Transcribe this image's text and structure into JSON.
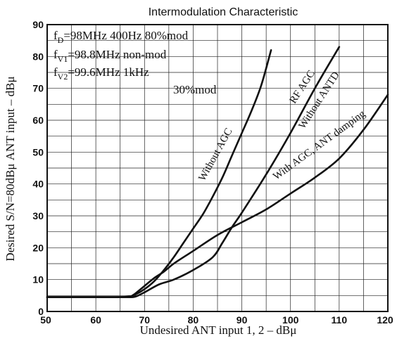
{
  "chart_data": {
    "type": "line",
    "title": "Intermodulation Characteristic",
    "xlabel": "Undesired ANT input 1, 2   –   dBμ",
    "ylabel": "Desired S/N=80dBμ ANT input   –   dBμ",
    "xlim": [
      50,
      120
    ],
    "ylim": [
      0,
      90
    ],
    "grid": true,
    "x_ticks": [
      "50",
      "60",
      "70",
      "80",
      "90",
      "100",
      "110",
      "120"
    ],
    "y_ticks": [
      "0",
      "10",
      "20",
      "30",
      "40",
      "50",
      "60",
      "70",
      "80",
      "90"
    ],
    "annotations": [
      {
        "base": "f",
        "sub": "D",
        "text": "=98MHz  400Hz  80%mod"
      },
      {
        "base": "f",
        "sub": "V1",
        "text": "=98.8MHz  non-mod"
      },
      {
        "base": "f",
        "sub": "V2",
        "text": "=99.6MHz  1kHz"
      },
      {
        "base": "",
        "sub": "",
        "text": "30%mod"
      }
    ],
    "series": [
      {
        "name": "Without AGC",
        "x": [
          50,
          60,
          65,
          67,
          68,
          70,
          72,
          74,
          76,
          78,
          80,
          82,
          84,
          86,
          88,
          90,
          92,
          94,
          96
        ],
        "y": [
          4.5,
          4.5,
          4.5,
          4.7,
          5.2,
          7,
          9.5,
          13,
          17,
          21.5,
          26,
          30.5,
          36,
          42,
          49,
          56,
          63,
          71,
          82
        ]
      },
      {
        "name": "RF AGC\nWithout ANTD",
        "x": [
          50,
          60,
          66,
          68,
          70,
          73,
          76,
          80,
          84,
          86,
          88,
          90,
          95,
          100,
          105,
          110
        ],
        "y": [
          4.5,
          4.5,
          4.5,
          4.6,
          6,
          8.5,
          10,
          13,
          17,
          21.5,
          26.5,
          31,
          43,
          56,
          70,
          83
        ]
      },
      {
        "name": "With AGC, ANT damping",
        "x": [
          50,
          60,
          66,
          67,
          68,
          70,
          72,
          74,
          76,
          80,
          85,
          90,
          95,
          100,
          105,
          110,
          115,
          120
        ],
        "y": [
          4.5,
          4.5,
          4.5,
          4.6,
          5.5,
          8,
          10.5,
          12.5,
          15,
          19,
          24,
          28,
          32,
          37,
          42,
          48,
          57,
          68
        ]
      }
    ]
  }
}
